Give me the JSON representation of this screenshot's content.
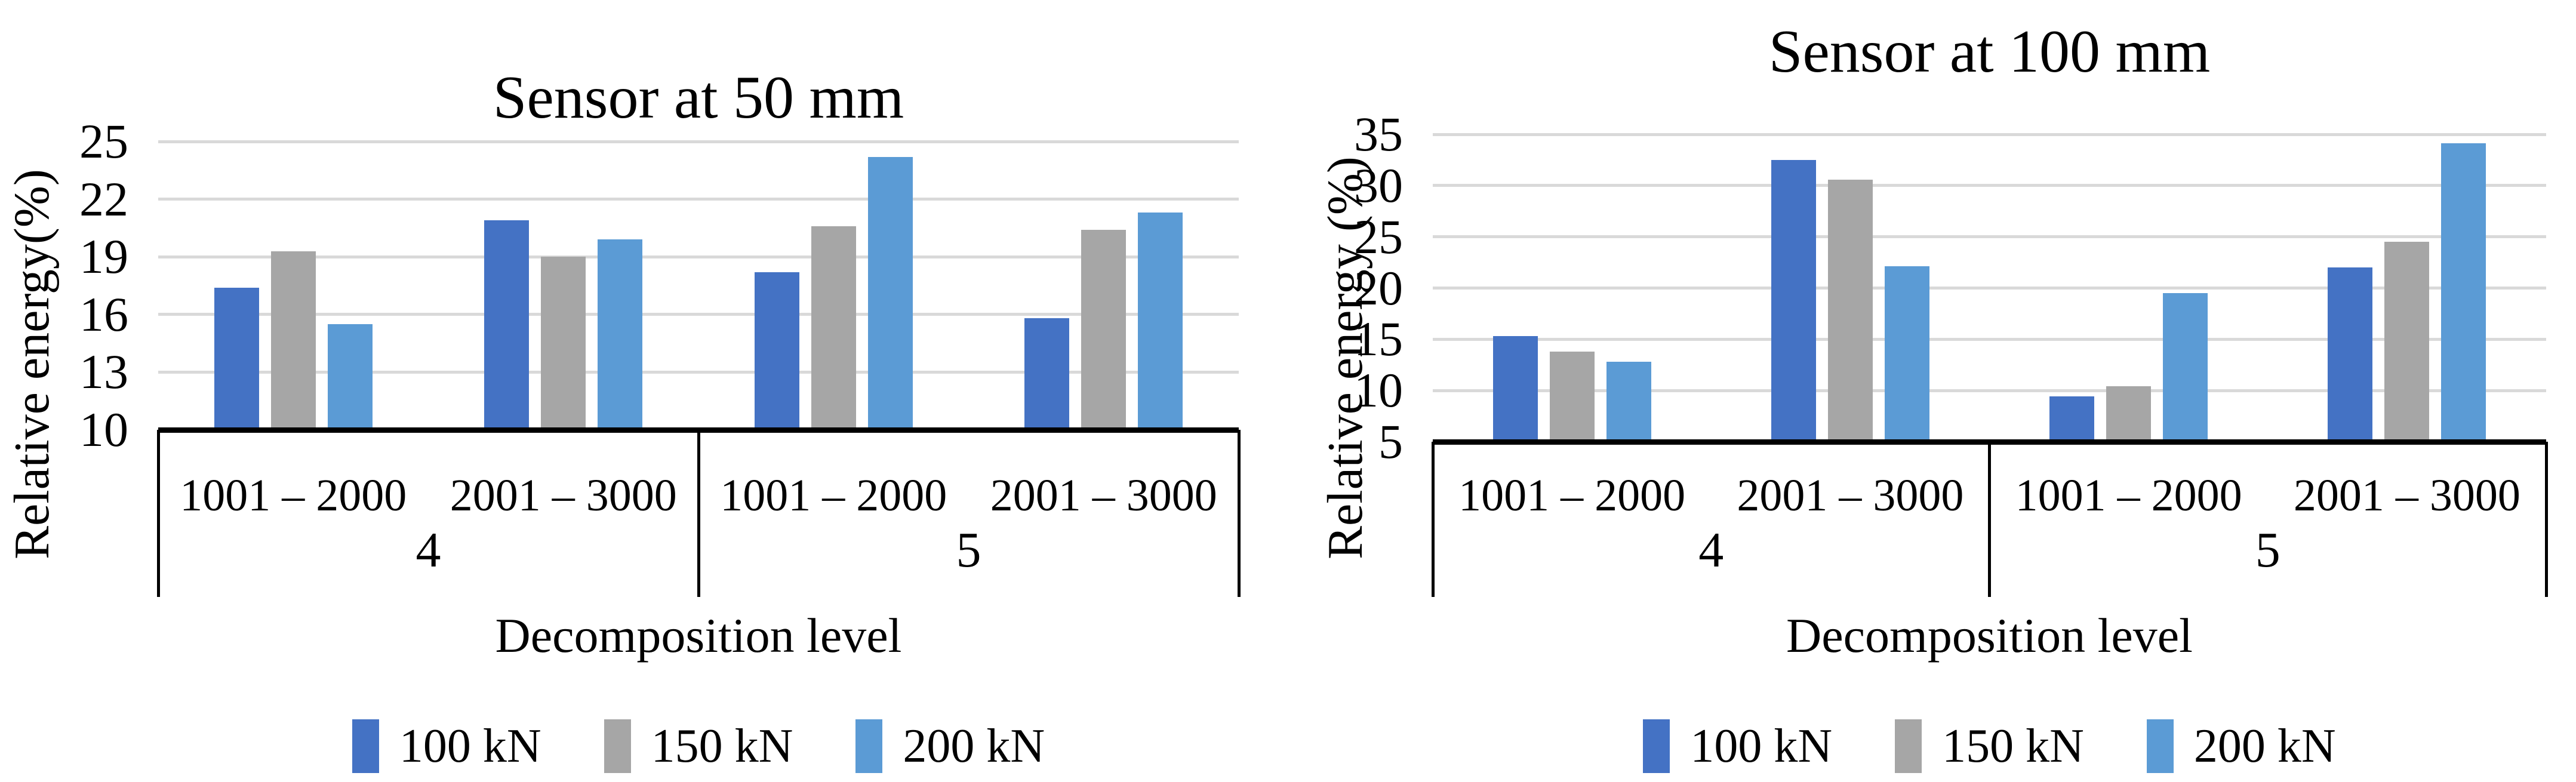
{
  "page": {
    "background": "#ffffff"
  },
  "colors": {
    "gridline": "#D9D9D9",
    "axis": "#000000",
    "series_100kN": "#4472C4",
    "series_150kN": "#A6A6A6",
    "series_200kN": "#5B9BD5"
  },
  "chart_data": [
    {
      "type": "bar",
      "title": "Sensor at 50 mm",
      "ylabel": "Relative energy(%)",
      "xlabel": "Decomposition level",
      "ylim": [
        10,
        25
      ],
      "yticks": [
        10,
        13,
        16,
        19,
        22,
        25
      ],
      "grid": true,
      "legend_position": "bottom",
      "group_labels": [
        "4",
        "5"
      ],
      "categories": [
        "1001 – 2000",
        "2001 – 3000",
        "1001 – 2000",
        "2001 – 3000"
      ],
      "series": [
        {
          "name": "100 kN",
          "color": "#4472C4",
          "values": [
            17.4,
            20.9,
            18.2,
            15.8
          ]
        },
        {
          "name": "150 kN",
          "color": "#A6A6A6",
          "values": [
            19.3,
            19.0,
            20.6,
            20.4
          ]
        },
        {
          "name": "200 kN",
          "color": "#5B9BD5",
          "values": [
            15.5,
            19.9,
            24.2,
            21.3
          ]
        }
      ]
    },
    {
      "type": "bar",
      "title": "Sensor at 100 mm",
      "ylabel": "Relative energy (%)",
      "xlabel": "Decomposition level",
      "ylim": [
        5,
        35
      ],
      "yticks": [
        5,
        10,
        15,
        20,
        25,
        30,
        35
      ],
      "grid": true,
      "legend_position": "bottom",
      "group_labels": [
        "4",
        "5"
      ],
      "categories": [
        "1001 – 2000",
        "2001 – 3000",
        "1001 – 2000",
        "2001 – 3000"
      ],
      "series": [
        {
          "name": "100 kN",
          "color": "#4472C4",
          "values": [
            15.3,
            32.5,
            9.4,
            22.0
          ]
        },
        {
          "name": "150 kN",
          "color": "#A6A6A6",
          "values": [
            13.8,
            30.6,
            10.4,
            24.5
          ]
        },
        {
          "name": "200 kN",
          "color": "#5B9BD5",
          "values": [
            12.8,
            22.1,
            19.5,
            34.1
          ]
        }
      ]
    }
  ]
}
